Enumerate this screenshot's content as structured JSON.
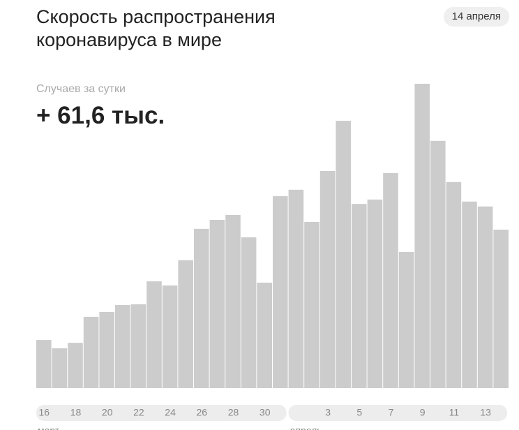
{
  "chart_data": {
    "type": "bar",
    "title": "Скорость распространения коронавируса в мире",
    "date": "14 апреля",
    "metric_label": "Случаев за сутки",
    "headline": "+ 61,6 тыс.",
    "color": "#cccccc",
    "categories": [
      "16",
      null,
      "18",
      null,
      "20",
      null,
      "22",
      null,
      "24",
      null,
      "26",
      null,
      "28",
      null,
      "30",
      null,
      null,
      null,
      "3",
      null,
      "5",
      null,
      "7",
      null,
      "9",
      null,
      "11",
      null,
      "13",
      null
    ],
    "values": [
      18.7,
      15.5,
      17.6,
      27.7,
      29.6,
      32.3,
      32.6,
      41.5,
      39.9,
      49.7,
      61.9,
      65.4,
      67.3,
      58.6,
      41.0,
      74.6,
      77.1,
      64.6,
      84.4,
      103.9,
      71.6,
      73.3,
      83.6,
      52.9,
      118.3,
      96.1,
      80.1,
      72.5,
      70.6,
      61.6
    ],
    "months": [
      {
        "name": "март",
        "days": 16
      },
      {
        "name": "апрель",
        "days": 14
      }
    ]
  }
}
